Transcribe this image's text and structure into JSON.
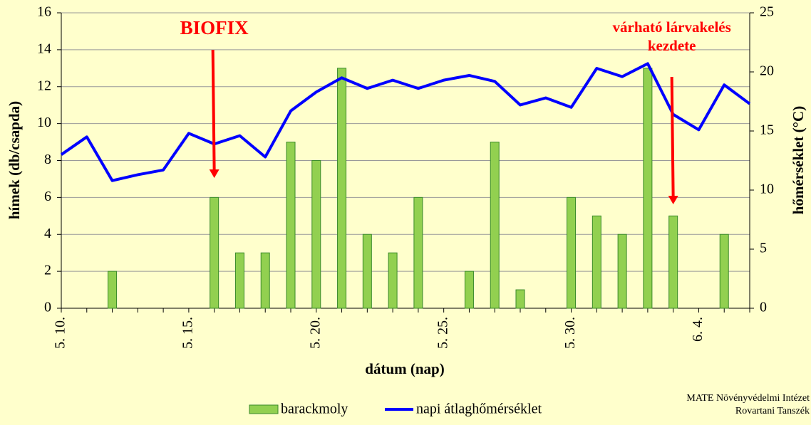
{
  "chart_data": {
    "type": "bar_line",
    "categories": [
      "5. 10.",
      null,
      null,
      null,
      null,
      "5. 15.",
      null,
      null,
      null,
      null,
      "5. 20.",
      null,
      null,
      null,
      null,
      "5. 25.",
      null,
      null,
      null,
      null,
      "5. 30.",
      null,
      null,
      null,
      null,
      "6. 4.",
      null,
      null
    ],
    "series": [
      {
        "name": "barackmoly",
        "type": "bar",
        "color": "#92d050",
        "values": [
          0,
          0,
          2,
          0,
          0,
          0,
          6,
          3,
          3,
          9,
          8,
          13,
          4,
          3,
          6,
          0,
          2,
          9,
          1,
          0,
          6,
          5,
          4,
          13,
          5,
          0,
          4,
          0
        ]
      },
      {
        "name": "napi átlaghőmérséklet",
        "type": "line",
        "axis": "y2",
        "color": "#0000ff",
        "values": [
          13,
          14.5,
          10.8,
          11.3,
          11.7,
          14.8,
          13.9,
          14.6,
          12.8,
          16.7,
          18.3,
          19.5,
          18.6,
          19.3,
          18.6,
          19.3,
          19.7,
          19.2,
          17.2,
          17.8,
          17.0,
          20.3,
          19.6,
          20.7,
          16.4,
          15.1,
          18.9,
          17.3
        ]
      }
    ],
    "xlabel": "dátum (nap)",
    "ylabel": "hímek (db/csapda)",
    "y2label": "hőmérséklet (°C)",
    "ylim": [
      0,
      16
    ],
    "yticks": [
      0,
      2,
      4,
      6,
      8,
      10,
      12,
      14,
      16
    ],
    "y2lim": [
      0,
      25
    ],
    "y2ticks": [
      0,
      5,
      10,
      15,
      20,
      25
    ],
    "annotations": [
      {
        "text": [
          "BIOFIX"
        ],
        "at": 6
      },
      {
        "text": [
          "várható lárvakelés",
          "kezdete"
        ],
        "at": 24
      }
    ],
    "source": [
      "MATE Növényvédelmi Intézet",
      "Rovartani Tanszék"
    ]
  }
}
